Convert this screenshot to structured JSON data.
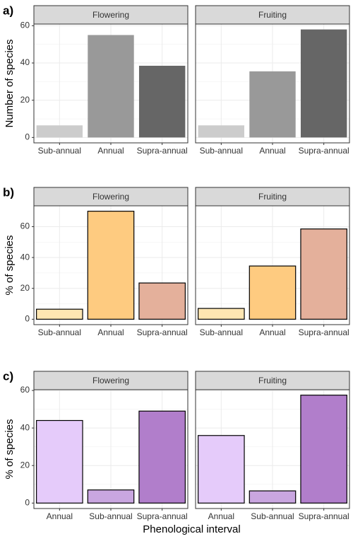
{
  "chart_data": [
    {
      "type": "bar",
      "panel_label": "a)",
      "ylabel": "Number of species",
      "ylim": [
        -2.9,
        60.9
      ],
      "yticks": [
        0,
        20,
        40,
        60
      ],
      "grid": true,
      "outline": false,
      "facets": [
        {
          "title": "Flowering",
          "categories": [
            "Sub-annual",
            "Annual",
            "Supra-annual"
          ],
          "values": [
            6.5,
            55,
            38.5
          ],
          "colors": [
            "#cccccc",
            "#999999",
            "#666666"
          ]
        },
        {
          "title": "Fruiting",
          "categories": [
            "Sub-annual",
            "Annual",
            "Supra-annual"
          ],
          "values": [
            6.5,
            35.5,
            58
          ],
          "colors": [
            "#cccccc",
            "#999999",
            "#666666"
          ]
        }
      ]
    },
    {
      "type": "bar",
      "panel_label": "b)",
      "ylabel": "% of species",
      "ylim": [
        -3.5,
        73.5
      ],
      "yticks": [
        0,
        20,
        40,
        60
      ],
      "grid": true,
      "outline": true,
      "facets": [
        {
          "title": "Flowering",
          "categories": [
            "Sub-annual",
            "Annual",
            "Supra-annual"
          ],
          "values": [
            6.5,
            70,
            23.5
          ],
          "colors": [
            "#fee6b2",
            "#fecb80",
            "#e4b09b"
          ]
        },
        {
          "title": "Fruiting",
          "categories": [
            "Sub-annual",
            "Annual",
            "Supra-annual"
          ],
          "values": [
            7,
            34.5,
            58.5
          ],
          "colors": [
            "#fee6b2",
            "#fecb80",
            "#e4b09b"
          ]
        }
      ]
    },
    {
      "type": "bar",
      "panel_label": "c)",
      "ylabel": "% of species",
      "xlabel": "Phenological interval",
      "ylim": [
        -2.9,
        60.4
      ],
      "yticks": [
        0,
        20,
        40,
        60
      ],
      "grid": true,
      "outline": true,
      "facets": [
        {
          "title": "Flowering",
          "categories": [
            "Annual",
            "Sub-annual",
            "Supra-annual"
          ],
          "values": [
            44,
            7,
            49
          ],
          "colors": [
            "#e5cbfa",
            "#c9a6e0",
            "#b17ecb"
          ]
        },
        {
          "title": "Fruiting",
          "categories": [
            "Annual",
            "Sub-annual",
            "Supra-annual"
          ],
          "values": [
            36,
            6.5,
            57.5
          ],
          "colors": [
            "#e5cbfa",
            "#c9a6e0",
            "#b17ecb"
          ]
        }
      ]
    }
  ]
}
